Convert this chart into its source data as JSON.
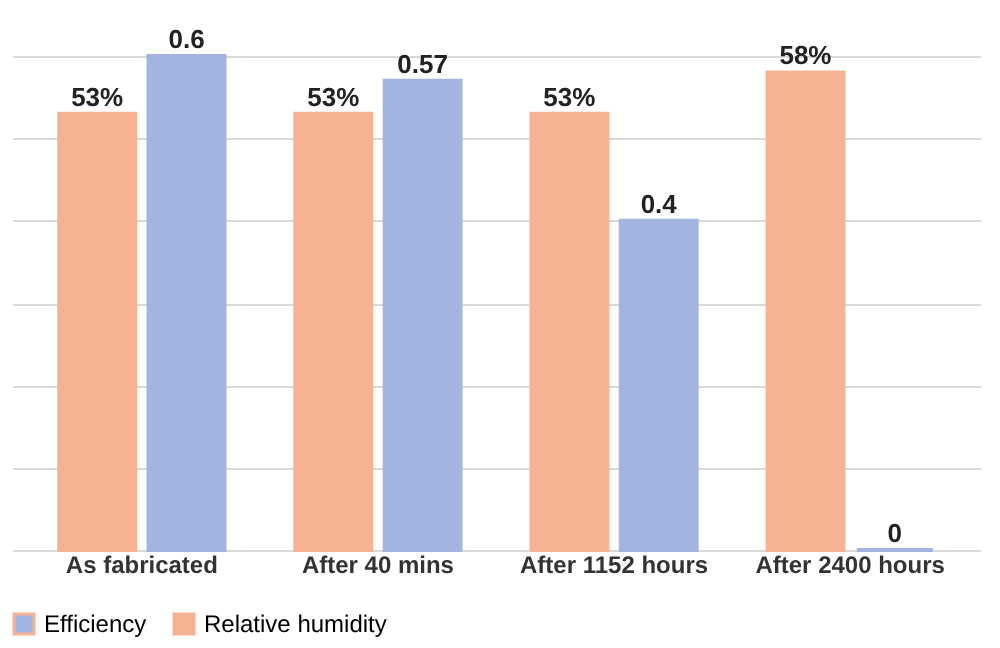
{
  "chart_data": {
    "type": "bar",
    "categories": [
      "As fabricated",
      "After 40 mins",
      "After 1152 hours",
      "After 2400 hours"
    ],
    "series": [
      {
        "name": "Relative humidity",
        "color": "#f6b393",
        "axis": "y2",
        "values": [
          53,
          53,
          53,
          58
        ],
        "value_labels": [
          "53%",
          "53%",
          "53%",
          "58%"
        ]
      },
      {
        "name": "Efficiency",
        "color": "#a4b4e0",
        "values": [
          0.6,
          0.57,
          0.4,
          0
        ],
        "value_labels": [
          "0.6",
          "0.57",
          "0.4",
          "0"
        ]
      }
    ],
    "ylim": [
      0,
      0.6
    ],
    "yticks": [
      {
        "value": 0,
        "label": null
      },
      {
        "value": 0.1,
        "label": null
      },
      {
        "value": 0.2,
        "label": null
      },
      {
        "value": 0.3,
        "label": null
      },
      {
        "value": 0.4,
        "label": null
      },
      {
        "value": 0.5,
        "label": null
      },
      {
        "value": 0.6,
        "label": null
      }
    ],
    "y2lim": [
      0,
      60
    ],
    "grid": "y",
    "legend": "bottom"
  }
}
